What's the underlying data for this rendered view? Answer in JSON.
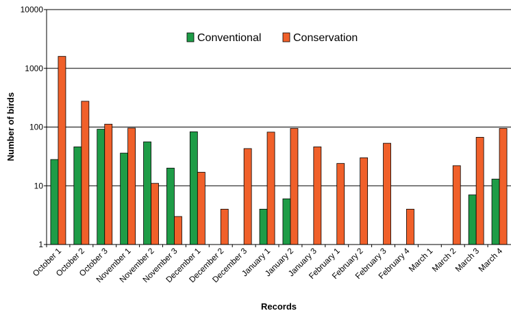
{
  "chart_data": {
    "type": "bar",
    "scale": "log",
    "xlabel": "Records",
    "ylabel": "Number of birds",
    "ylim": [
      1,
      10000
    ],
    "yticks": [
      "1",
      "10",
      "100",
      "1000",
      "10000"
    ],
    "grid": true,
    "legend_position": "top-center",
    "categories": [
      "October 1",
      "October 2",
      "October 3",
      "November 1",
      "November 2",
      "November 3",
      "December 1",
      "December 2",
      "December 3",
      "January 1",
      "January 2",
      "January 3",
      "February 1",
      "February 2",
      "February 3",
      "February 4",
      "March 1",
      "March 2",
      "March 3",
      "March 4"
    ],
    "series": [
      {
        "name": "Conventional",
        "color": "#1e9c47",
        "values": [
          28,
          46,
          92,
          36,
          56,
          20,
          83,
          null,
          null,
          4,
          6,
          null,
          null,
          null,
          null,
          null,
          null,
          null,
          7,
          13
        ]
      },
      {
        "name": "Conservation",
        "color": "#f0602a",
        "values": [
          1600,
          275,
          112,
          96,
          11,
          3,
          17,
          4,
          43,
          82,
          95,
          46,
          24,
          30,
          53,
          4,
          null,
          22,
          67,
          95
        ]
      }
    ]
  }
}
